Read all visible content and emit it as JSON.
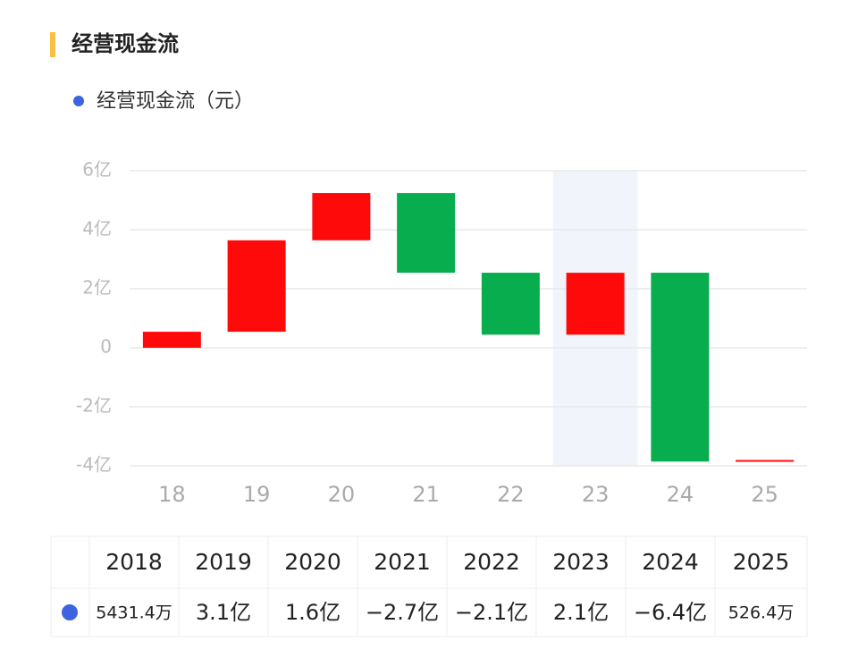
{
  "title": "经营现金流",
  "chart_data": {
    "type": "waterfall",
    "legend": "经营现金流（元）",
    "categories": [
      "18",
      "19",
      "20",
      "21",
      "22",
      "23",
      "24",
      "25"
    ],
    "values": [
      0.54314,
      3.1,
      1.6,
      -2.7,
      -2.1,
      2.1,
      -6.4,
      0.05264
    ],
    "positive_color": "#ff0a0a",
    "negative_color": "#08ad4e",
    "legend_color": "#3d63e0",
    "highlight": 5,
    "ylim": [
      -4,
      6
    ],
    "yticks": [
      {
        "value": -4,
        "label": "-4亿"
      },
      {
        "value": -2,
        "label": "-2亿"
      },
      0,
      {
        "value": 2,
        "label": "2亿"
      },
      {
        "value": 4,
        "label": "4亿"
      },
      {
        "value": 6,
        "label": "6亿"
      }
    ],
    "grid": true
  },
  "table": {
    "years": [
      "2018",
      "2019",
      "2020",
      "2021",
      "2022",
      "2023",
      "2024",
      "2025"
    ],
    "value_labels": [
      "5431.4万",
      "3.1亿",
      "1.6亿",
      "−2.7亿",
      "−2.1亿",
      "2.1亿",
      "−6.4亿",
      "526.4万"
    ]
  }
}
